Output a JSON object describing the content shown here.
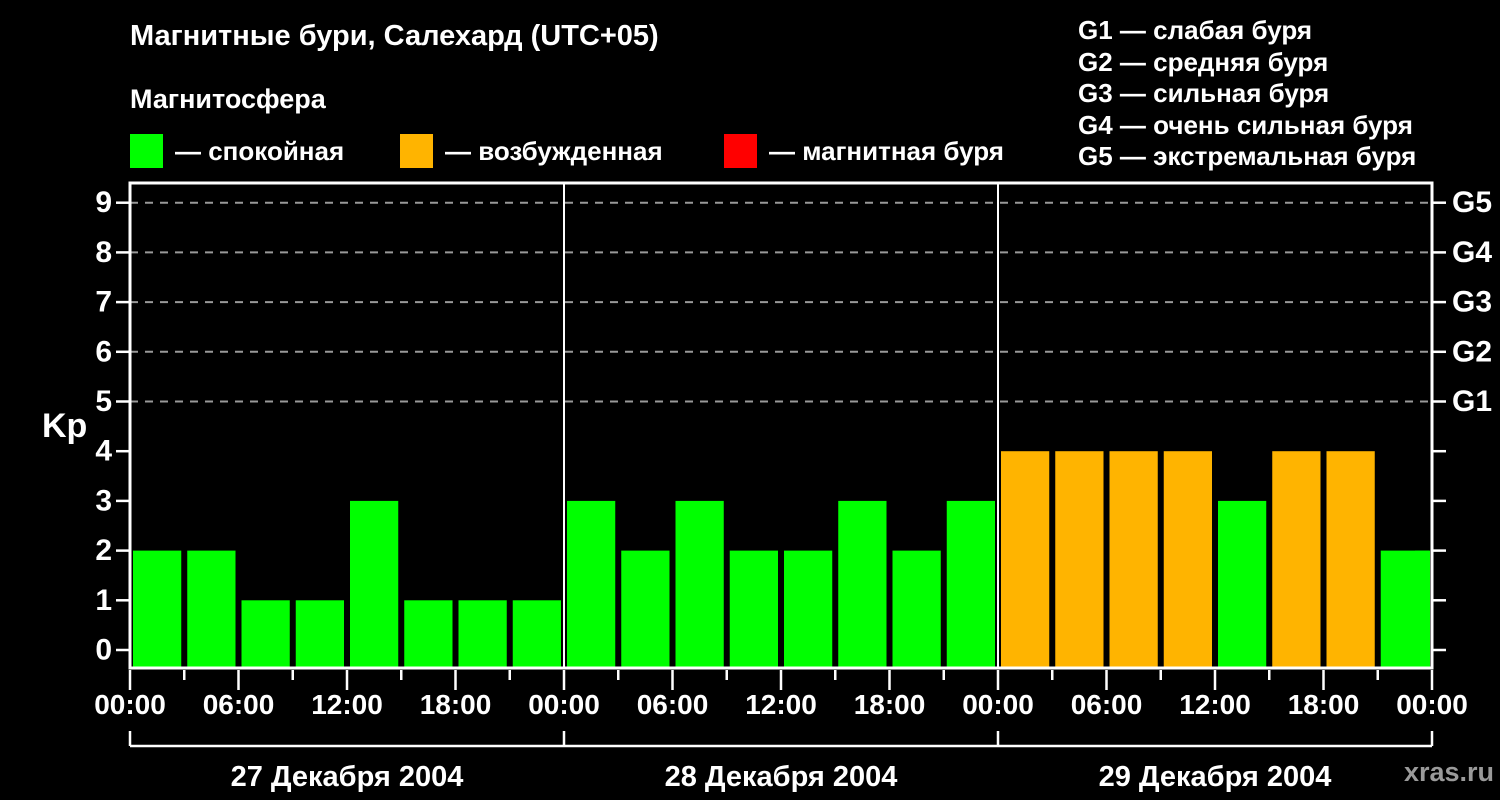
{
  "header": {
    "title": "Магнитные бури, Салехард (UTC+05)",
    "subtitle": "Магнитосфера",
    "watermark": "xras.ru"
  },
  "legend": {
    "items": [
      {
        "key": "quiet",
        "label": "— спокойная",
        "color": "#00ff00"
      },
      {
        "key": "active",
        "label": "— возбужденная",
        "color": "#ffb400"
      },
      {
        "key": "storm",
        "label": "— магнитная буря",
        "color": "#ff0000"
      }
    ]
  },
  "storm_scale": {
    "items": [
      {
        "label": "G1 — слабая буря"
      },
      {
        "label": "G2 — средняя буря"
      },
      {
        "label": "G3 — сильная буря"
      },
      {
        "label": "G4 — очень сильная буря"
      },
      {
        "label": "G5 — экстремальная буря"
      }
    ]
  },
  "chart_data": {
    "type": "bar",
    "title": "Магнитные бури, Салехард (UTC+05)",
    "xlabel": "",
    "ylabel": "Kp",
    "ylim": [
      0,
      9
    ],
    "yticks": [
      0,
      1,
      2,
      3,
      4,
      5,
      6,
      7,
      8,
      9
    ],
    "grid_dashed_at": [
      5,
      6,
      7,
      8,
      9
    ],
    "right_axis_labels": [
      {
        "kp": 5,
        "label": "G1"
      },
      {
        "kp": 6,
        "label": "G2"
      },
      {
        "kp": 7,
        "label": "G3"
      },
      {
        "kp": 8,
        "label": "G4"
      },
      {
        "kp": 9,
        "label": "G5"
      }
    ],
    "x_tick_labels": [
      "00:00",
      "06:00",
      "12:00",
      "18:00",
      "00:00",
      "06:00",
      "12:00",
      "18:00",
      "00:00",
      "06:00",
      "12:00",
      "18:00",
      "00:00"
    ],
    "hours_per_bar": 3,
    "days": [
      {
        "label": "27 Декабря 2004",
        "values": [
          2,
          2,
          1,
          1,
          3,
          1,
          1,
          1
        ]
      },
      {
        "label": "28 Декабря 2004",
        "values": [
          3,
          2,
          3,
          2,
          2,
          3,
          2,
          3
        ]
      },
      {
        "label": "29 Декабря 2004",
        "values": [
          4,
          4,
          4,
          4,
          3,
          4,
          4,
          2
        ]
      }
    ],
    "partial_next_value": 2,
    "colors": {
      "quiet": "#00ff00",
      "active": "#ffb400",
      "storm": "#ff0000",
      "grid": "#999999",
      "axis": "#ffffff"
    },
    "color_rule": {
      "quiet_max": 3,
      "active_max": 4
    },
    "legend_position": "top"
  }
}
